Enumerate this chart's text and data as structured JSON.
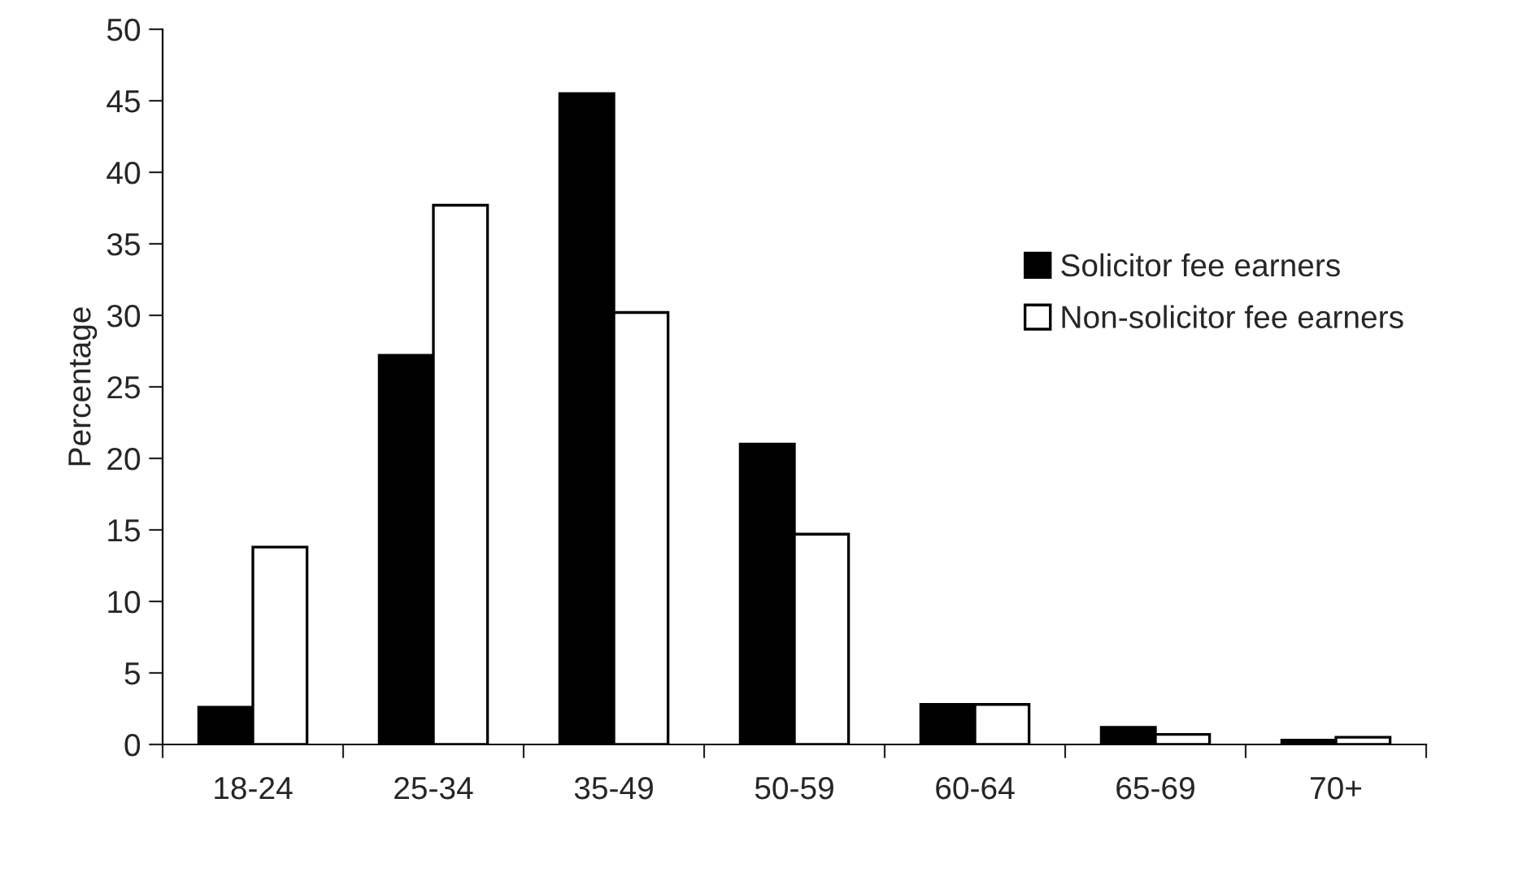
{
  "chart_data": {
    "type": "bar",
    "ylabel": "Percentage",
    "categories": [
      "18-24",
      "25-34",
      "35-49",
      "50-59",
      "60-64",
      "65-69",
      "70+"
    ],
    "series": [
      {
        "name": "Solicitor fee earners",
        "color": "#000000",
        "values": [
          2.6,
          27.2,
          45.5,
          21.0,
          2.8,
          1.2,
          0.3
        ]
      },
      {
        "name": "Non-solicitor fee earners",
        "color": "#ffffff",
        "values": [
          13.8,
          37.7,
          30.2,
          14.7,
          2.8,
          0.7,
          0.5
        ]
      }
    ],
    "ylim": [
      0,
      50
    ],
    "yticks": [
      0,
      5,
      10,
      15,
      20,
      25,
      30,
      35,
      40,
      45,
      50
    ],
    "grid": false,
    "legend": "right"
  }
}
